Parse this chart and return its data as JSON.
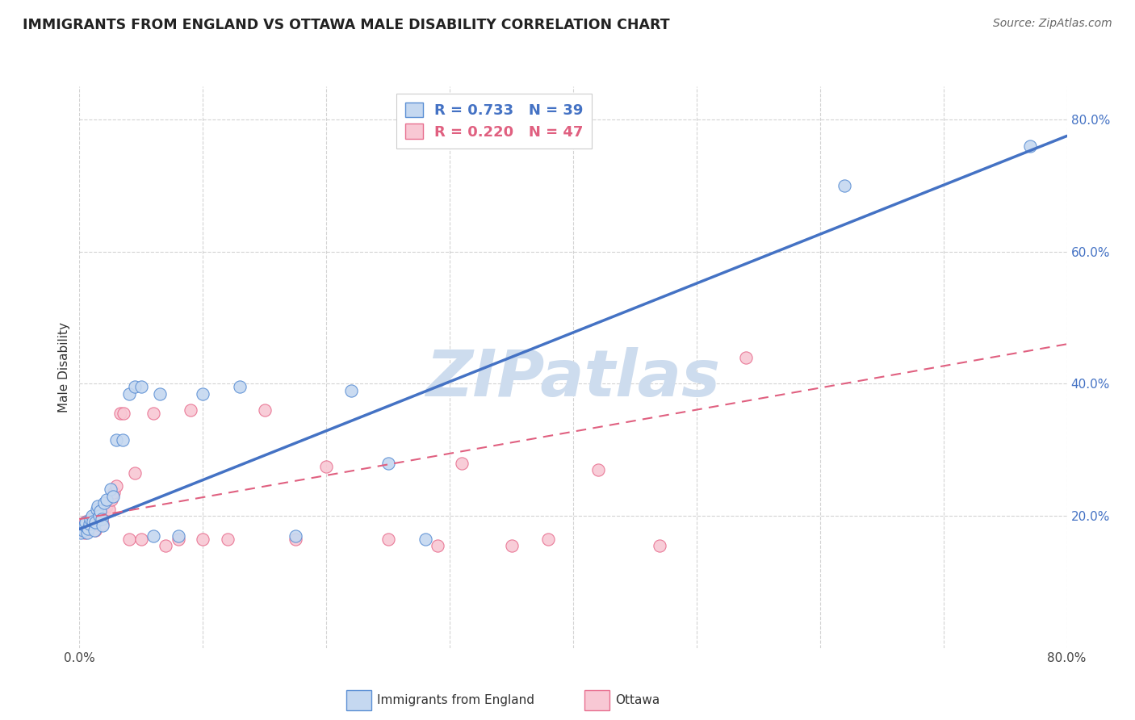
{
  "title": "IMMIGRANTS FROM ENGLAND VS OTTAWA MALE DISABILITY CORRELATION CHART",
  "source": "Source: ZipAtlas.com",
  "ylabel": "Male Disability",
  "xlim": [
    0.0,
    0.8
  ],
  "ylim": [
    0.0,
    0.85
  ],
  "yticks": [
    0.2,
    0.4,
    0.6,
    0.8
  ],
  "ytick_labels": [
    "20.0%",
    "40.0%",
    "60.0%",
    "80.0%"
  ],
  "xticks": [
    0.0,
    0.1,
    0.2,
    0.3,
    0.4,
    0.5,
    0.6,
    0.7,
    0.8
  ],
  "background_color": "#ffffff",
  "england_fill_color": "#c5d8f0",
  "england_edge_color": "#5b8fd4",
  "england_line_color": "#4472c4",
  "ottawa_fill_color": "#f8c8d4",
  "ottawa_edge_color": "#e87090",
  "ottawa_line_color": "#e06080",
  "england_R": 0.733,
  "england_N": 39,
  "ottawa_R": 0.22,
  "ottawa_N": 47,
  "england_line_x0": 0.0,
  "england_line_y0": 0.18,
  "england_line_x1": 0.8,
  "england_line_y1": 0.775,
  "ottawa_line_x0": 0.0,
  "ottawa_line_y0": 0.195,
  "ottawa_line_x1": 0.8,
  "ottawa_line_y1": 0.46,
  "england_scatter_x": [
    0.001,
    0.002,
    0.003,
    0.004,
    0.005,
    0.006,
    0.007,
    0.008,
    0.009,
    0.01,
    0.011,
    0.012,
    0.013,
    0.014,
    0.015,
    0.016,
    0.017,
    0.018,
    0.019,
    0.02,
    0.022,
    0.025,
    0.027,
    0.03,
    0.035,
    0.04,
    0.045,
    0.05,
    0.06,
    0.065,
    0.08,
    0.1,
    0.13,
    0.175,
    0.22,
    0.25,
    0.28,
    0.62,
    0.77
  ],
  "england_scatter_y": [
    0.175,
    0.182,
    0.178,
    0.185,
    0.19,
    0.175,
    0.18,
    0.188,
    0.195,
    0.2,
    0.192,
    0.178,
    0.19,
    0.21,
    0.215,
    0.2,
    0.208,
    0.195,
    0.185,
    0.22,
    0.225,
    0.24,
    0.23,
    0.315,
    0.315,
    0.385,
    0.395,
    0.395,
    0.17,
    0.385,
    0.17,
    0.385,
    0.395,
    0.17,
    0.39,
    0.28,
    0.165,
    0.7,
    0.76
  ],
  "ottawa_scatter_x": [
    0.001,
    0.002,
    0.003,
    0.004,
    0.005,
    0.006,
    0.007,
    0.008,
    0.009,
    0.01,
    0.011,
    0.012,
    0.013,
    0.014,
    0.015,
    0.016,
    0.017,
    0.018,
    0.019,
    0.02,
    0.022,
    0.024,
    0.026,
    0.028,
    0.03,
    0.033,
    0.036,
    0.04,
    0.045,
    0.05,
    0.06,
    0.07,
    0.08,
    0.09,
    0.1,
    0.12,
    0.15,
    0.175,
    0.2,
    0.25,
    0.29,
    0.31,
    0.35,
    0.38,
    0.42,
    0.47,
    0.54
  ],
  "ottawa_scatter_y": [
    0.185,
    0.188,
    0.182,
    0.175,
    0.192,
    0.178,
    0.18,
    0.185,
    0.19,
    0.195,
    0.188,
    0.182,
    0.178,
    0.192,
    0.195,
    0.185,
    0.2,
    0.195,
    0.188,
    0.205,
    0.215,
    0.21,
    0.225,
    0.235,
    0.245,
    0.355,
    0.355,
    0.165,
    0.265,
    0.165,
    0.355,
    0.155,
    0.165,
    0.36,
    0.165,
    0.165,
    0.36,
    0.165,
    0.275,
    0.165,
    0.155,
    0.28,
    0.155,
    0.165,
    0.27,
    0.155,
    0.44
  ],
  "watermark": "ZIPatlas",
  "watermark_color": "#cddcee"
}
